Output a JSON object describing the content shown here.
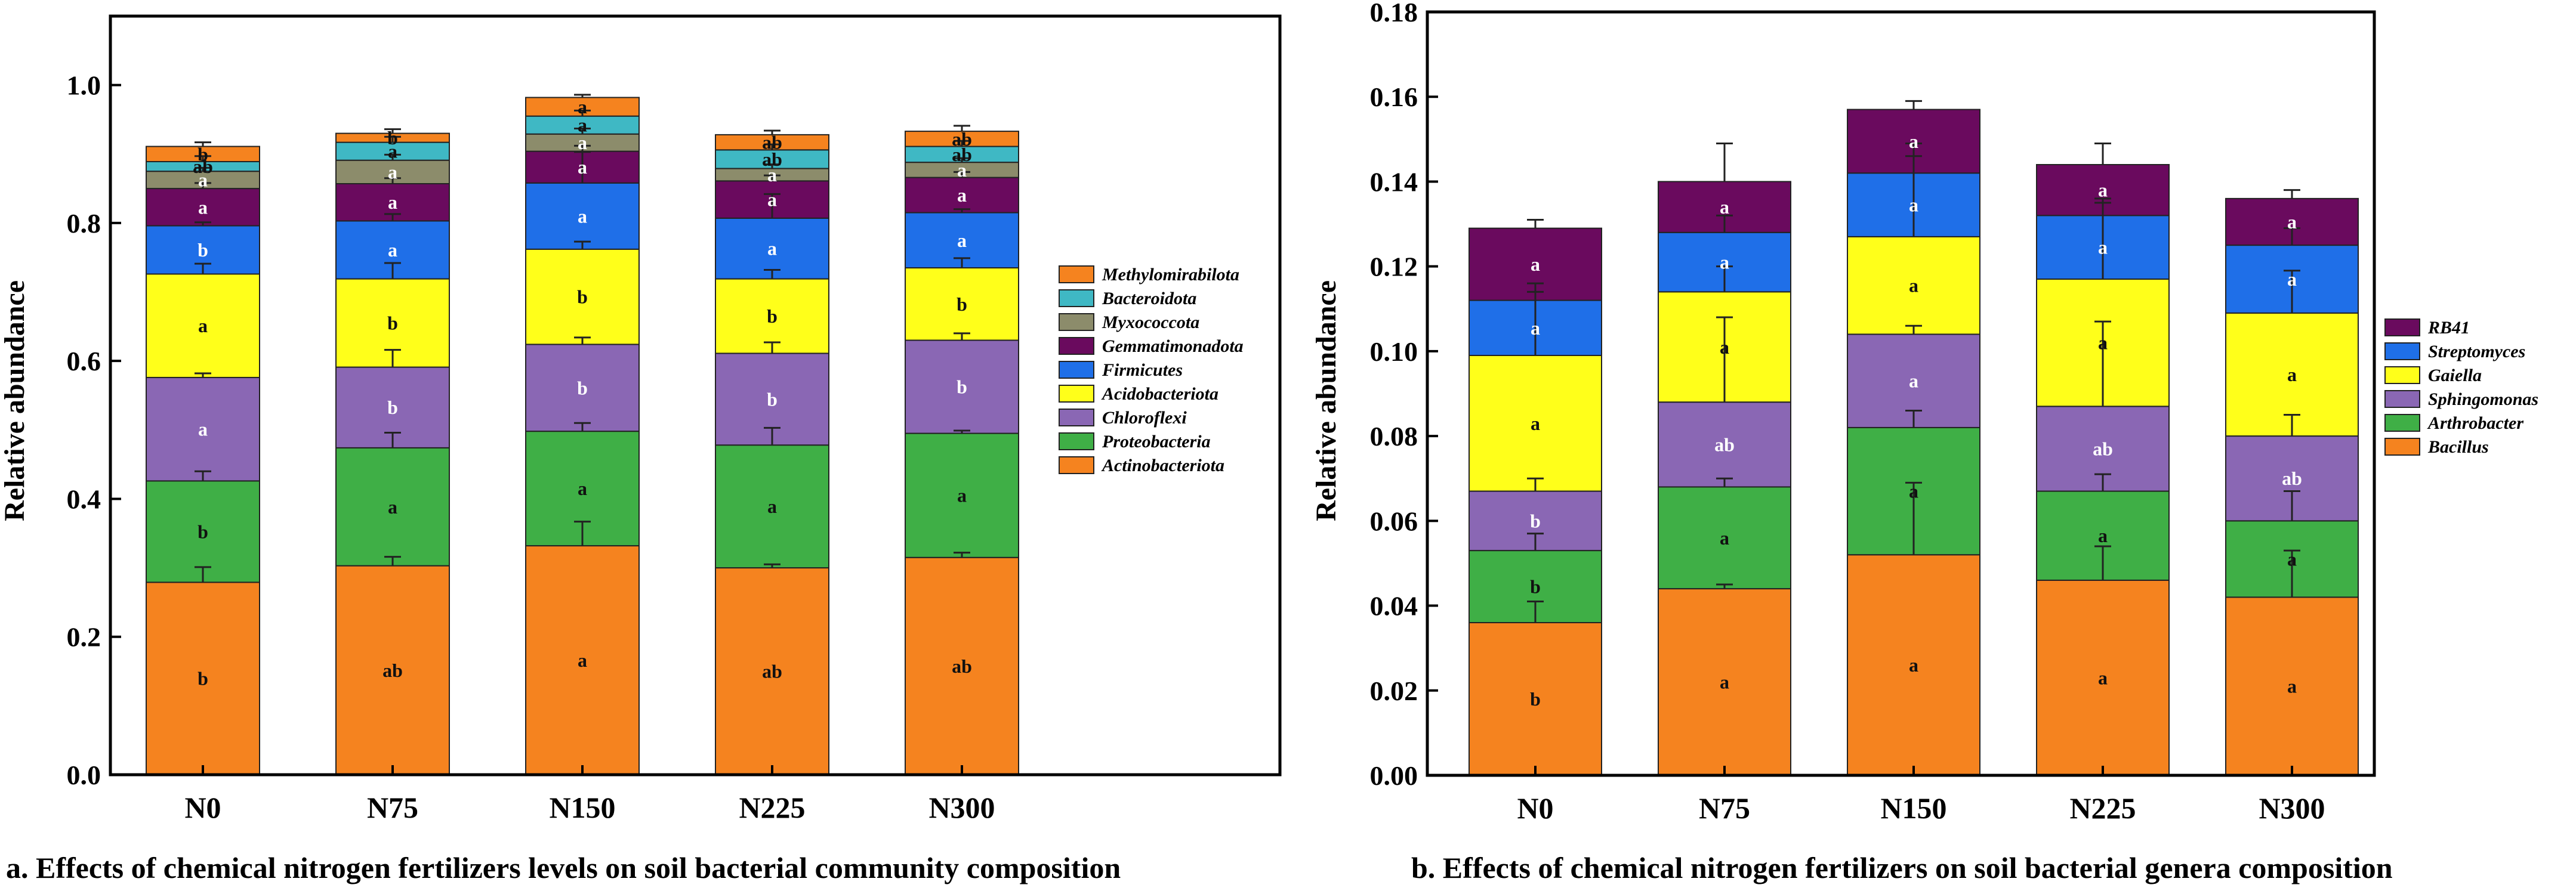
{
  "chart_data": [
    {
      "type": "stacked-bar",
      "title": "",
      "caption": "a. Effects of chemical nitrogen fertilizers levels on soil bacterial community composition",
      "xlabel": "",
      "ylabel": "Relative abundance",
      "ylim": [
        0,
        1.1
      ],
      "yticks": [
        "0.0",
        "0.2",
        "0.4",
        "0.6",
        "0.8",
        "1.0"
      ],
      "categories": [
        "N0",
        "N75",
        "N150",
        "N225",
        "N300"
      ],
      "legend_position": "right",
      "series": [
        {
          "name": "Actinobacteriota",
          "color": "#F5831F",
          "values": [
            0.279,
            0.303,
            0.332,
            0.3,
            0.315
          ],
          "errors": [
            0.022,
            0.013,
            0.035,
            0.005,
            0.007
          ],
          "letters": [
            "b",
            "ab",
            "a",
            "ab",
            "ab"
          ],
          "letter_color": "#111111"
        },
        {
          "name": "Proteobacteria",
          "color": "#3FAF46",
          "values": [
            0.147,
            0.171,
            0.166,
            0.178,
            0.18
          ],
          "errors": [
            0.014,
            0.022,
            0.012,
            0.025,
            0.004
          ],
          "letters": [
            "b",
            "a",
            "a",
            "a",
            "a"
          ],
          "letter_color": "#111111"
        },
        {
          "name": "Chloroflexi",
          "color": "#8A67B4",
          "values": [
            0.15,
            0.117,
            0.126,
            0.133,
            0.135
          ],
          "errors": [
            0.006,
            0.025,
            0.01,
            0.016,
            0.01
          ],
          "letters": [
            "a",
            "b",
            "b",
            "b",
            "b"
          ],
          "letter_color": "#FFFFFF"
        },
        {
          "name": "Acidobacteriota",
          "color": "#FFFF1A",
          "values": [
            0.15,
            0.128,
            0.138,
            0.108,
            0.105
          ],
          "errors": [
            0.015,
            0.023,
            0.011,
            0.013,
            0.014
          ],
          "letters": [
            "a",
            "b",
            "b",
            "b",
            "b"
          ],
          "letter_color": "#111111"
        },
        {
          "name": "Firmicutes",
          "color": "#1F6FE8",
          "values": [
            0.07,
            0.084,
            0.096,
            0.088,
            0.08
          ],
          "errors": [
            0.005,
            0.01,
            0.045,
            0.035,
            0.005
          ],
          "letters": [
            "b",
            "a",
            "a",
            "a",
            "a"
          ],
          "letter_color": "#FFFFFF"
        },
        {
          "name": "Gemmatimonadota",
          "color": "#6A0A5E",
          "values": [
            0.054,
            0.054,
            0.046,
            0.054,
            0.051
          ],
          "errors": [
            0.008,
            0.008,
            0.008,
            0.008,
            0.008
          ],
          "letters": [
            "a",
            "a",
            "a",
            "a",
            "a"
          ],
          "letter_color": "#FFFFFF"
        },
        {
          "name": "Myxococcota",
          "color": "#8C8C6B",
          "values": [
            0.025,
            0.034,
            0.025,
            0.018,
            0.022
          ],
          "errors": [
            0.005,
            0.008,
            0.008,
            0.006,
            0.006
          ],
          "letters": [
            "a",
            "a",
            "a",
            "a",
            "a"
          ],
          "letter_color": "#FFFFFF"
        },
        {
          "name": "Bacteroidota",
          "color": "#3FB8C4",
          "values": [
            0.014,
            0.026,
            0.026,
            0.027,
            0.023
          ],
          "errors": [
            0.008,
            0.008,
            0.008,
            0.008,
            0.008
          ],
          "letters": [
            "ab",
            "a",
            "a",
            "ab",
            "ab"
          ],
          "letter_color": "#111111"
        },
        {
          "name": "Methylomirabilota",
          "color": "#F5831F",
          "values": [
            0.022,
            0.013,
            0.027,
            0.022,
            0.022
          ],
          "errors": [
            0.006,
            0.006,
            0.004,
            0.006,
            0.008
          ],
          "letters": [
            "b",
            "b",
            "a",
            "ab",
            "ab"
          ],
          "letter_color": "#111111"
        }
      ]
    },
    {
      "type": "stacked-bar",
      "title": "",
      "caption": "b. Effects of chemical nitrogen fertilizers on soil bacterial genera  composition",
      "xlabel": "",
      "ylabel": "Relative abundance",
      "ylim": [
        0,
        0.18
      ],
      "yticks": [
        "0.00",
        "0.02",
        "0.04",
        "0.06",
        "0.08",
        "0.10",
        "0.12",
        "0.14",
        "0.16",
        "0.18"
      ],
      "categories": [
        "N0",
        "N75",
        "N150",
        "N225",
        "N300"
      ],
      "legend_position": "right",
      "series": [
        {
          "name": "Bacillus",
          "color": "#F5831F",
          "values": [
            0.036,
            0.044,
            0.052,
            0.046,
            0.042
          ],
          "errors": [
            0.005,
            0.001,
            0.017,
            0.008,
            0.011
          ],
          "letters": [
            "b",
            "a",
            "a",
            "a",
            "a"
          ],
          "letter_color": "#111111"
        },
        {
          "name": "Arthrobacter",
          "color": "#3FAF46",
          "values": [
            0.017,
            0.024,
            0.03,
            0.021,
            0.018
          ],
          "errors": [
            0.004,
            0.002,
            0.004,
            0.004,
            0.007
          ],
          "letters": [
            "b",
            "a",
            "a",
            "a",
            "a"
          ],
          "letter_color": "#111111"
        },
        {
          "name": "Sphingomonas",
          "color": "#8A67B4",
          "values": [
            0.014,
            0.02,
            0.022,
            0.02,
            0.02
          ],
          "errors": [
            0.003,
            0.02,
            0.002,
            0.02,
            0.005
          ],
          "letters": [
            "b",
            "ab",
            "a",
            "ab",
            "ab"
          ],
          "letter_color": "#FFFFFF"
        },
        {
          "name": "Gaiella",
          "color": "#FFFF1A",
          "values": [
            0.032,
            0.026,
            0.023,
            0.03,
            0.029
          ],
          "errors": [
            0.015,
            0.006,
            0.022,
            0.018,
            0.01
          ],
          "letters": [
            "a",
            "a",
            "a",
            "a",
            "a"
          ],
          "letter_color": "#111111"
        },
        {
          "name": "Streptomyces",
          "color": "#1F6FE8",
          "values": [
            0.013,
            0.014,
            0.015,
            0.015,
            0.016
          ],
          "errors": [
            0.004,
            0.004,
            0.004,
            0.004,
            0.004
          ],
          "letters": [
            "a",
            "a",
            "a",
            "a",
            "a"
          ],
          "letter_color": "#FFFFFF"
        },
        {
          "name": "RB41",
          "color": "#6A0A5E",
          "values": [
            0.017,
            0.012,
            0.015,
            0.012,
            0.011
          ],
          "errors": [
            0.002,
            0.009,
            0.002,
            0.005,
            0.002
          ],
          "letters": [
            "a",
            "a",
            "a",
            "a",
            "a"
          ],
          "letter_color": "#FFFFFF"
        }
      ]
    }
  ]
}
